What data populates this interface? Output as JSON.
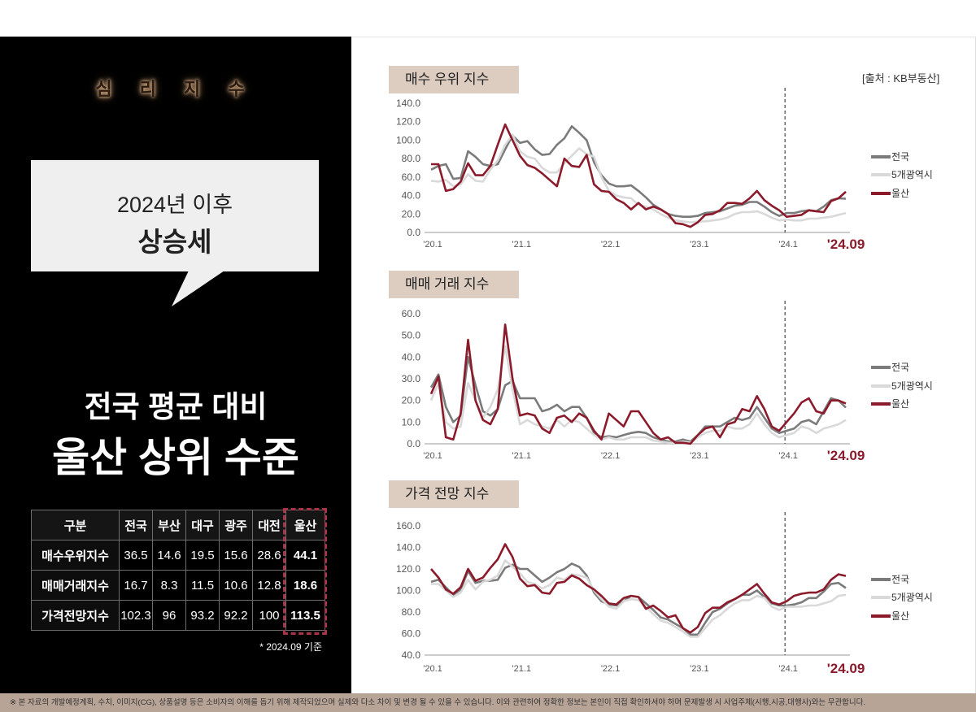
{
  "left": {
    "section_label": "심 리 지 수",
    "bubble_line1": "2024년 이후",
    "bubble_line2": "상승세",
    "headline1": "전국 평균 대비",
    "headline2": "울산 상위 수준",
    "table": {
      "headers": [
        "구분",
        "전국",
        "부산",
        "대구",
        "광주",
        "대전",
        "울산"
      ],
      "rows": [
        [
          "매수우위지수",
          "36.5",
          "14.6",
          "19.5",
          "15.6",
          "28.6",
          "44.1"
        ],
        [
          "매매거래지수",
          "16.7",
          "8.3",
          "11.5",
          "10.6",
          "12.8",
          "18.6"
        ],
        [
          "가격전망지수",
          "102.3",
          "96",
          "93.2",
          "92.2",
          "100",
          "113.5"
        ]
      ],
      "highlight_color": "#a8344a"
    },
    "note": "* 2024.09 기준"
  },
  "source": "[출처 : KB부동산]",
  "footer": "※ 본 자료의 개발예정계획, 수치, 이미지(CG), 상품설명 등은 소비자의 이해를 돕기 위해 제작되었으며 실제와 다소 차이 및 변경 될 수 있을 수 있습니다. 이와 관련하여 정확한 정보는 본인이 직접 확인하셔야 하며 문제발생 시 사업주체(시행,시공,대행사)와는 무관합니다.",
  "chart_data": [
    {
      "type": "line",
      "title": "매수 우위 지수",
      "ylim": [
        0,
        140
      ],
      "yticks": [
        "0.0",
        "20.0",
        "40.0",
        "60.0",
        "80.0",
        "100.0",
        "120.0",
        "140.0"
      ],
      "xtick_labels": [
        "'20.1",
        "'21.1",
        "'22.1",
        "'23.1",
        "'24.1",
        "'24.09"
      ],
      "xtick_index": [
        0,
        12,
        24,
        36,
        48,
        56
      ],
      "marker_index": 48,
      "legend_position": "right",
      "series": [
        {
          "name": "전국",
          "color": "#7b7b7b",
          "values": [
            68,
            72,
            74,
            58,
            59,
            88,
            82,
            74,
            72,
            74,
            90,
            105,
            97,
            99,
            90,
            84,
            85,
            95,
            102,
            115,
            108,
            100,
            76,
            62,
            53,
            50,
            50,
            51,
            45,
            38,
            30,
            25,
            20,
            18,
            17,
            17,
            18,
            21,
            22,
            23,
            26,
            29,
            30,
            33,
            33,
            28,
            22,
            18,
            21,
            21,
            23,
            24,
            23,
            28,
            35,
            37,
            36.5
          ]
        },
        {
          "name": "5개광역시",
          "color": "#d9d9d9",
          "values": [
            56,
            55,
            57,
            50,
            52,
            63,
            56,
            55,
            68,
            78,
            95,
            106,
            88,
            82,
            80,
            70,
            65,
            65,
            75,
            83,
            91,
            85,
            82,
            60,
            45,
            40,
            38,
            37,
            30,
            28,
            25,
            20,
            16,
            13,
            12,
            11,
            12,
            12,
            13,
            14,
            16,
            20,
            22,
            22,
            23,
            20,
            16,
            13,
            14,
            13,
            13,
            15,
            15,
            16,
            17,
            19,
            21
          ]
        },
        {
          "name": "울산",
          "color": "#8b1a2b",
          "values": [
            74,
            74,
            45,
            47,
            55,
            75,
            62,
            62,
            72,
            95,
            117,
            100,
            83,
            73,
            70,
            64,
            57,
            50,
            80,
            72,
            71,
            84,
            52,
            45,
            44,
            36,
            32,
            25,
            32,
            25,
            28,
            25,
            20,
            10,
            9,
            6,
            11,
            19,
            20,
            24,
            32,
            32,
            31,
            37,
            45,
            35,
            29,
            24,
            17,
            18,
            19,
            24,
            23,
            22,
            34,
            37,
            44.1
          ]
        }
      ]
    },
    {
      "type": "line",
      "title": "매매 거래 지수",
      "ylim": [
        0,
        60
      ],
      "yticks": [
        "0.0",
        "10.0",
        "20.0",
        "30.0",
        "40.0",
        "50.0",
        "60.0"
      ],
      "xtick_labels": [
        "'20.1",
        "'21.1",
        "'22.1",
        "'23.1",
        "'24.1",
        "'24.09"
      ],
      "xtick_index": [
        0,
        12,
        24,
        36,
        48,
        56
      ],
      "marker_index": 48,
      "legend_position": "right",
      "series": [
        {
          "name": "전국",
          "color": "#7b7b7b",
          "values": [
            26,
            32,
            17,
            10,
            13,
            40,
            27,
            15,
            13,
            16,
            27,
            29,
            21,
            21,
            21,
            15,
            16,
            18,
            15,
            17,
            17,
            12,
            5,
            3,
            3.5,
            3,
            4,
            5,
            5.5,
            5,
            3,
            2,
            1,
            1,
            2,
            1,
            4,
            8,
            8,
            8,
            10,
            12,
            11,
            12,
            17,
            12,
            7,
            5,
            6,
            7,
            10,
            11,
            9,
            15,
            21,
            20,
            16.7
          ]
        },
        {
          "name": "5개광역시",
          "color": "#d9d9d9",
          "values": [
            20,
            28,
            10,
            7,
            8,
            28,
            20,
            12,
            17,
            25,
            45,
            25,
            9,
            11,
            9,
            8,
            7,
            11,
            8,
            11,
            10,
            7,
            4,
            2,
            3,
            2,
            2,
            3,
            3,
            3,
            1.5,
            1,
            0.5,
            0.5,
            1,
            0.5,
            3,
            5,
            6,
            6,
            8,
            7,
            7,
            9,
            14,
            9,
            5,
            3,
            4,
            5,
            8,
            7,
            5,
            7,
            8,
            9,
            11
          ]
        },
        {
          "name": "울산",
          "color": "#8b1a2b",
          "values": [
            23,
            31,
            3,
            2,
            14,
            48,
            20,
            11,
            9,
            16,
            55,
            30,
            13,
            14,
            13,
            7,
            5,
            12,
            13,
            10,
            14,
            12,
            6,
            2,
            14,
            11,
            8,
            15,
            15,
            10,
            5,
            2,
            3,
            0.5,
            0.5,
            0,
            4,
            7,
            8,
            3,
            9,
            10,
            16,
            15,
            22,
            16,
            8,
            6,
            10,
            14,
            19,
            21,
            15,
            14,
            20,
            20,
            18.6
          ]
        }
      ]
    },
    {
      "type": "line",
      "title": "가격 전망 지수",
      "ylim": [
        40,
        160
      ],
      "yticks": [
        "40.0",
        "60.0",
        "80.0",
        "100.0",
        "120.0",
        "140.0",
        "160.0"
      ],
      "xtick_labels": [
        "'20.1",
        "'21.1",
        "'22.1",
        "'23.1",
        "'24.1",
        "'24.09"
      ],
      "xtick_index": [
        0,
        12,
        24,
        36,
        48,
        56
      ],
      "marker_index": 48,
      "legend_position": "right",
      "series": [
        {
          "name": "전국",
          "color": "#7b7b7b",
          "values": [
            108,
            110,
            103,
            96,
            101,
            118,
            107,
            109,
            109,
            110,
            121,
            124,
            120,
            120,
            114,
            108,
            112,
            117,
            120,
            125,
            122,
            114,
            98,
            90,
            87,
            86,
            90,
            95,
            94,
            88,
            82,
            75,
            73,
            69,
            65,
            59,
            59,
            70,
            80,
            83,
            88,
            92,
            96,
            96,
            100,
            94,
            88,
            86,
            86,
            87,
            89,
            93,
            93,
            99,
            106,
            107,
            102.3
          ]
        },
        {
          "name": "5개광역시",
          "color": "#d9d9d9",
          "values": [
            106,
            106,
            100,
            94,
            98,
            110,
            101,
            108,
            110,
            114,
            128,
            122,
            116,
            108,
            106,
            102,
            105,
            112,
            110,
            115,
            114,
            112,
            100,
            92,
            85,
            83,
            90,
            92,
            91,
            85,
            78,
            72,
            70,
            66,
            62,
            57,
            57,
            65,
            73,
            77,
            83,
            88,
            91,
            91,
            95,
            93,
            85,
            82,
            85,
            85,
            85,
            86,
            86,
            88,
            90,
            95,
            96
          ]
        },
        {
          "name": "울산",
          "color": "#8b1a2b",
          "values": [
            120,
            112,
            101,
            97,
            103,
            120,
            109,
            112,
            121,
            129,
            143,
            131,
            111,
            104,
            105,
            98,
            97,
            107,
            108,
            114,
            111,
            105,
            101,
            95,
            88,
            87,
            93,
            95,
            94,
            83,
            86,
            81,
            75,
            77,
            65,
            61,
            66,
            79,
            84,
            84,
            89,
            92,
            96,
            101,
            106,
            97,
            89,
            87,
            90,
            95,
            97,
            98,
            98,
            101,
            110,
            115,
            113.5
          ]
        }
      ]
    }
  ]
}
